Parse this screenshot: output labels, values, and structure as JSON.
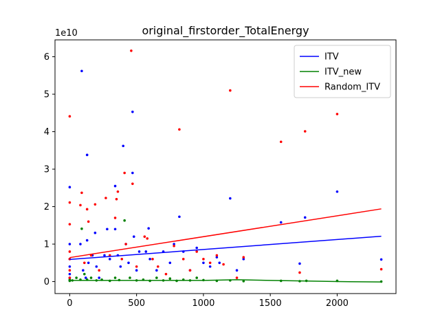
{
  "chart_data": {
    "type": "scatter",
    "title": "original_firstorder_TotalEnergy",
    "xlabel": "",
    "ylabel": "",
    "y_offset_label": "1e10",
    "xlim": [
      -110,
      2440
    ],
    "ylim": [
      -3.2,
      64.5
    ],
    "y_scale_note": "values in units of 1e10",
    "x_ticks": [
      0,
      500,
      1000,
      1500,
      2000
    ],
    "x_tick_labels": [
      "0",
      "500",
      "1000",
      "1500",
      "2000"
    ],
    "y_ticks": [
      0,
      10,
      20,
      30,
      40,
      50,
      60
    ],
    "y_tick_labels": [
      "0",
      "1",
      "2",
      "3",
      "4",
      "5",
      "6"
    ],
    "grid": false,
    "legend_position": "top-right",
    "series": [
      {
        "name": "ITV",
        "color": "#0000ff",
        "points": [
          [
            0,
            25.2
          ],
          [
            0,
            10
          ],
          [
            0,
            6
          ],
          [
            0,
            4
          ],
          [
            0,
            2
          ],
          [
            0,
            1
          ],
          [
            0,
            0.3
          ],
          [
            90,
            56.2
          ],
          [
            80,
            10
          ],
          [
            100,
            3
          ],
          [
            120,
            1
          ],
          [
            130,
            33.8
          ],
          [
            130,
            11
          ],
          [
            140,
            5
          ],
          [
            170,
            7
          ],
          [
            190,
            13
          ],
          [
            200,
            4
          ],
          [
            220,
            1
          ],
          [
            260,
            7
          ],
          [
            280,
            14
          ],
          [
            300,
            6
          ],
          [
            340,
            25.5
          ],
          [
            340,
            14
          ],
          [
            360,
            7
          ],
          [
            380,
            4
          ],
          [
            400,
            36.2
          ],
          [
            420,
            10
          ],
          [
            440,
            5
          ],
          [
            470,
            45.3
          ],
          [
            470,
            29
          ],
          [
            480,
            12
          ],
          [
            500,
            3
          ],
          [
            520,
            8
          ],
          [
            570,
            8
          ],
          [
            590,
            14.2
          ],
          [
            600,
            6
          ],
          [
            650,
            3
          ],
          [
            700,
            8
          ],
          [
            750,
            5
          ],
          [
            780,
            10
          ],
          [
            820,
            17.3
          ],
          [
            850,
            8
          ],
          [
            900,
            3
          ],
          [
            950,
            9
          ],
          [
            1000,
            5
          ],
          [
            1050,
            4
          ],
          [
            1100,
            6.5
          ],
          [
            1120,
            5
          ],
          [
            1200,
            22.2
          ],
          [
            1250,
            3
          ],
          [
            1300,
            6
          ],
          [
            1580,
            15.8
          ],
          [
            1720,
            4.8
          ],
          [
            1760,
            17.1
          ],
          [
            2000,
            24
          ],
          [
            2330,
            5.9
          ]
        ],
        "fit": [
          [
            0,
            5.9
          ],
          [
            2330,
            12.1
          ]
        ]
      },
      {
        "name": "ITV_new",
        "color": "#008000",
        "points": [
          [
            0,
            0.5
          ],
          [
            0,
            0.2
          ],
          [
            20,
            0.3
          ],
          [
            50,
            1
          ],
          [
            80,
            0.5
          ],
          [
            90,
            14.1
          ],
          [
            110,
            2
          ],
          [
            130,
            0.5
          ],
          [
            160,
            1
          ],
          [
            200,
            0.3
          ],
          [
            240,
            0.5
          ],
          [
            300,
            0.2
          ],
          [
            340,
            1
          ],
          [
            370,
            0.4
          ],
          [
            410,
            16.3
          ],
          [
            450,
            1
          ],
          [
            500,
            0.3
          ],
          [
            550,
            0.5
          ],
          [
            600,
            0.2
          ],
          [
            650,
            1
          ],
          [
            700,
            0.3
          ],
          [
            750,
            0.8
          ],
          [
            800,
            0.2
          ],
          [
            850,
            0.5
          ],
          [
            900,
            0.3
          ],
          [
            950,
            1
          ],
          [
            1000,
            0.4
          ],
          [
            1100,
            0.2
          ],
          [
            1200,
            0.3
          ],
          [
            1300,
            0.1
          ],
          [
            1580,
            0.2
          ],
          [
            1720,
            0.1
          ],
          [
            1770,
            0.2
          ],
          [
            2000,
            0.2
          ],
          [
            2330,
            0
          ]
        ],
        "fit": [
          [
            0,
            0.3
          ],
          [
            1000,
            0.3
          ],
          [
            1250,
            0.5
          ],
          [
            1500,
            0.3
          ],
          [
            2000,
            0
          ],
          [
            2330,
            -0.1
          ]
        ]
      },
      {
        "name": "Random_ITV",
        "color": "#ff0000",
        "points": [
          [
            0,
            44.1
          ],
          [
            0,
            21.1
          ],
          [
            0,
            15.3
          ],
          [
            0,
            8
          ],
          [
            0,
            6
          ],
          [
            0,
            3
          ],
          [
            0,
            1
          ],
          [
            80,
            20.4
          ],
          [
            90,
            23.7
          ],
          [
            110,
            5
          ],
          [
            130,
            19.3
          ],
          [
            140,
            16
          ],
          [
            160,
            7
          ],
          [
            190,
            20.6
          ],
          [
            220,
            3
          ],
          [
            270,
            22.3
          ],
          [
            300,
            7
          ],
          [
            340,
            17
          ],
          [
            350,
            22
          ],
          [
            360,
            24
          ],
          [
            390,
            6
          ],
          [
            410,
            29
          ],
          [
            420,
            10
          ],
          [
            460,
            61.6
          ],
          [
            470,
            26.1
          ],
          [
            500,
            4
          ],
          [
            560,
            12
          ],
          [
            580,
            11.5
          ],
          [
            620,
            6
          ],
          [
            660,
            4
          ],
          [
            720,
            2
          ],
          [
            780,
            9.5
          ],
          [
            820,
            40.6
          ],
          [
            850,
            6
          ],
          [
            900,
            3
          ],
          [
            950,
            8
          ],
          [
            1000,
            6
          ],
          [
            1050,
            5
          ],
          [
            1100,
            7
          ],
          [
            1150,
            4.6
          ],
          [
            1200,
            51
          ],
          [
            1250,
            1
          ],
          [
            1300,
            6.5
          ],
          [
            1580,
            37.3
          ],
          [
            1720,
            2.4
          ],
          [
            1760,
            40.1
          ],
          [
            2000,
            44.7
          ],
          [
            2330,
            3.3
          ]
        ],
        "fit": [
          [
            0,
            6.4
          ],
          [
            2330,
            19.4
          ]
        ]
      }
    ]
  }
}
